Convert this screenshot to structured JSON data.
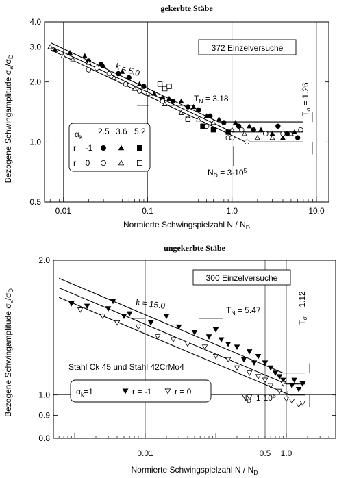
{
  "chart_data": [
    {
      "type": "scatter",
      "title": "gekerbte Stäbe",
      "xlabel": "Normierte Schwingspielzahl  N / N_D",
      "ylabel": "Bezogene Schwingamplitude  σa/σD",
      "xscale": "log",
      "yscale": "log",
      "xlim": [
        0.006,
        14
      ],
      "ylim": [
        0.5,
        4.0
      ],
      "xticks": [
        0.01,
        0.1,
        1.0,
        10.0
      ],
      "xtick_labels": [
        "0.01",
        "0.1",
        "1.0",
        "10.0"
      ],
      "yticks": [
        0.5,
        1.0,
        2.0,
        3.0,
        4.0
      ],
      "ytick_labels": [
        "0.5",
        "1.0",
        "2.0",
        "3.0",
        "4.0"
      ],
      "grid": true,
      "slope_k": 5.0,
      "box_text": "372 Einzelversuche",
      "annotations": {
        "TN": "T_N = 3.18",
        "Tsigma": "T_σ = 1.26",
        "ND": "N_D = 3·10^5",
        "k": "k = 5.0"
      },
      "lines": {
        "knee_x": 1.0,
        "y_center": 1.122,
        "y_upper": 1.26,
        "y_lower": 1.0,
        "band_factor": 1.45
      },
      "legend": {
        "alpha_label": "α_k",
        "alpha_values": [
          "2.5",
          "3.6",
          "5.2"
        ],
        "rows": [
          {
            "label": "r = -1",
            "symbols": [
              "filled-circle",
              "filled-triangle",
              "filled-square"
            ]
          },
          {
            "label": "r = 0",
            "symbols": [
              "open-circle",
              "open-triangle",
              "open-square"
            ]
          }
        ]
      },
      "series": [
        {
          "name": "αk=2.5 r=-1",
          "marker": "filled-circle",
          "points": [
            [
              0.02,
              2.55
            ],
            [
              0.028,
              2.45
            ],
            [
              0.045,
              2.2
            ],
            [
              0.06,
              2.1
            ],
            [
              0.09,
              1.9
            ],
            [
              0.15,
              1.65
            ],
            [
              0.2,
              1.6
            ],
            [
              0.3,
              1.5
            ],
            [
              0.4,
              1.45
            ],
            [
              0.55,
              1.35
            ],
            [
              0.8,
              1.25
            ],
            [
              1.2,
              1.2
            ],
            [
              1.8,
              1.15
            ],
            [
              2.5,
              1.1
            ],
            [
              3.5,
              1.2
            ],
            [
              4.5,
              1.1
            ],
            [
              6.0,
              1.05
            ]
          ]
        },
        {
          "name": "αk=3.6 r=-1",
          "marker": "filled-triangle",
          "points": [
            [
              0.008,
              2.9
            ],
            [
              0.012,
              2.8
            ],
            [
              0.018,
              2.7
            ],
            [
              0.03,
              2.4
            ],
            [
              0.05,
              2.25
            ],
            [
              0.08,
              1.95
            ],
            [
              0.12,
              1.75
            ],
            [
              0.18,
              1.65
            ],
            [
              0.25,
              1.6
            ],
            [
              0.35,
              1.5
            ],
            [
              0.5,
              1.35
            ],
            [
              0.7,
              1.3
            ],
            [
              1.1,
              1.25
            ],
            [
              1.6,
              1.2
            ],
            [
              2.2,
              1.15
            ],
            [
              3.0,
              1.1
            ],
            [
              4.0,
              1.05
            ],
            [
              5.5,
              1.12
            ]
          ]
        },
        {
          "name": "αk=5.2 r=-1",
          "marker": "filled-square",
          "points": [
            [
              0.3,
              1.3
            ],
            [
              0.45,
              1.2
            ],
            [
              0.6,
              1.15
            ],
            [
              0.9,
              1.12
            ]
          ]
        },
        {
          "name": "αk=2.5 r=0",
          "marker": "open-circle",
          "points": [
            [
              0.02,
              2.3
            ],
            [
              0.025,
              2.35
            ],
            [
              0.035,
              2.2
            ],
            [
              0.055,
              1.95
            ],
            [
              0.08,
              1.8
            ],
            [
              0.15,
              1.6
            ],
            [
              0.3,
              1.3
            ],
            [
              0.5,
              1.2
            ],
            [
              0.9,
              1.05
            ],
            [
              1.0,
              1.05
            ],
            [
              1.5,
              1.0
            ],
            [
              1.3,
              1.15
            ],
            [
              2.5,
              1.1
            ],
            [
              4.0,
              1.1
            ],
            [
              6.5,
              1.15
            ]
          ]
        },
        {
          "name": "αk=3.6 r=0",
          "marker": "open-triangle",
          "points": [
            [
              0.007,
              3.0
            ],
            [
              0.01,
              2.7
            ],
            [
              0.013,
              2.6
            ],
            [
              0.02,
              2.5
            ],
            [
              0.04,
              2.1
            ],
            [
              0.07,
              1.85
            ],
            [
              0.1,
              1.75
            ],
            [
              0.16,
              1.55
            ],
            [
              0.25,
              1.4
            ],
            [
              0.4,
              1.3
            ],
            [
              0.6,
              1.25
            ],
            [
              1.0,
              1.15
            ],
            [
              1.4,
              1.1
            ],
            [
              2.0,
              1.05
            ],
            [
              3.0,
              1.05
            ],
            [
              5.0,
              1.1
            ]
          ]
        },
        {
          "name": "αk=5.2 r=0",
          "marker": "open-square",
          "points": [
            [
              0.14,
              1.95
            ],
            [
              0.16,
              1.85
            ],
            [
              0.18,
              1.9
            ]
          ]
        }
      ]
    },
    {
      "type": "scatter",
      "title": "ungekerbte Stäbe",
      "xlabel": "Normierte Schwingspielzahl  N / N_D",
      "ylabel": "Bezogene Schwingamplitude  σa/σD",
      "xscale": "log",
      "yscale": "log",
      "xlim": [
        0.0005,
        5.0
      ],
      "ylim": [
        0.8,
        2.0
      ],
      "xticks": [
        0.01,
        0.5,
        1.0
      ],
      "xtick_labels": [
        "0.01",
        "0.5",
        "1.0"
      ],
      "yticks": [
        0.8,
        0.9,
        1.0,
        2.0
      ],
      "ytick_labels": [
        "0.8",
        "0.9",
        "1.0",
        "2.0"
      ],
      "grid": true,
      "slope_k": 15.0,
      "box_text": "300 Einzelversuche",
      "note": "Stahl Ck 45  und Stahl  42CrMo4",
      "annotations": {
        "TN": "T_N = 5.47",
        "Tsigma": "T_σ = 1.12",
        "ND": "N_D=1·10^6",
        "k": "k = 15.0"
      },
      "lines": {
        "knee_x": 1.0,
        "y_center": 1.058,
        "y_upper": 1.12,
        "y_lower": 1.0,
        "band_factor": 1.12
      },
      "legend": {
        "alpha_label": "α_k=1",
        "rows": [
          {
            "label": "r = -1",
            "symbols": [
              "filled-down-triangle"
            ]
          },
          {
            "label": "r = 0",
            "symbols": [
              "open-down-triangle"
            ]
          }
        ]
      },
      "series": [
        {
          "name": "r=-1",
          "marker": "filled-down-triangle",
          "points": [
            [
              0.0009,
              1.6
            ],
            [
              0.0015,
              1.58
            ],
            [
              0.003,
              1.56
            ],
            [
              0.005,
              1.5
            ],
            [
              0.0035,
              1.62
            ],
            [
              0.006,
              1.52
            ],
            [
              0.012,
              1.45
            ],
            [
              0.02,
              1.5
            ],
            [
              0.03,
              1.42
            ],
            [
              0.05,
              1.38
            ],
            [
              0.08,
              1.35
            ],
            [
              0.12,
              1.33
            ],
            [
              0.1,
              1.4
            ],
            [
              0.15,
              1.3
            ],
            [
              0.2,
              1.28
            ],
            [
              0.3,
              1.25
            ],
            [
              0.4,
              1.22
            ],
            [
              0.5,
              1.18
            ],
            [
              0.7,
              1.12
            ],
            [
              0.6,
              1.15
            ],
            [
              0.9,
              1.08
            ],
            [
              1.2,
              1.05
            ],
            [
              1.5,
              1.03
            ],
            [
              1.3,
              1.08
            ],
            [
              1.7,
              1.06
            ],
            [
              0.25,
              1.2
            ],
            [
              0.35,
              1.18
            ],
            [
              0.8,
              1.1
            ]
          ]
        },
        {
          "name": "r=0",
          "marker": "open-down-triangle",
          "points": [
            [
              0.0012,
              1.55
            ],
            [
              0.0025,
              1.5
            ],
            [
              0.004,
              1.45
            ],
            [
              0.008,
              1.42
            ],
            [
              0.015,
              1.35
            ],
            [
              0.025,
              1.33
            ],
            [
              0.04,
              1.3
            ],
            [
              0.07,
              1.28
            ],
            [
              0.1,
              1.22
            ],
            [
              0.15,
              1.2
            ],
            [
              0.2,
              1.15
            ],
            [
              0.3,
              1.12
            ],
            [
              0.4,
              1.1
            ],
            [
              0.6,
              1.05
            ],
            [
              0.8,
              1.02
            ],
            [
              1.0,
              0.98
            ],
            [
              1.2,
              0.97
            ],
            [
              1.5,
              0.95
            ],
            [
              1.7,
              0.96
            ],
            [
              0.3,
              0.99
            ],
            [
              0.9,
              1.06
            ],
            [
              0.5,
              1.08
            ]
          ]
        }
      ]
    }
  ]
}
